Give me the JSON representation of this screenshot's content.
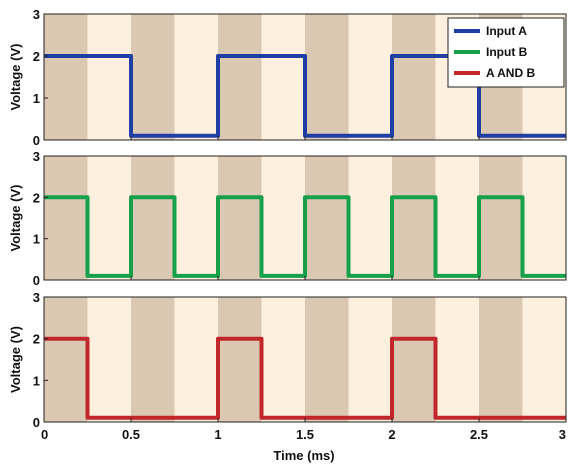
{
  "chart_data": {
    "type": "line",
    "xlabel": "Time (ms)",
    "xlim": [
      0,
      3
    ],
    "x_ticks": [
      "0",
      "0.5",
      "1",
      "1.5",
      "2",
      "2.5",
      "3"
    ],
    "shading": {
      "band_width_ms": 0.25,
      "dark_color": "#dac8b2",
      "light_color": "#fdf0de",
      "first_band": "dark"
    },
    "legend_position": "top-right",
    "panels": [
      {
        "ylabel": "Voltage (V)",
        "ylim": [
          0,
          3
        ],
        "y_ticks": [
          "0",
          "1",
          "2",
          "3"
        ],
        "series": {
          "name": "Input A",
          "color": "#1f3fa5",
          "x": [
            0,
            0.5,
            0.5,
            1,
            1,
            1.5,
            1.5,
            2,
            2,
            2.5,
            2.5,
            3
          ],
          "y": [
            2,
            2,
            0.1,
            0.1,
            2,
            2,
            0.1,
            0.1,
            2,
            2,
            0.1,
            0.1
          ]
        }
      },
      {
        "ylabel": "Voltage (V)",
        "ylim": [
          0,
          3
        ],
        "y_ticks": [
          "0",
          "1",
          "2",
          "3"
        ],
        "series": {
          "name": "Input B",
          "color": "#17a04a",
          "x": [
            0,
            0.25,
            0.25,
            0.5,
            0.5,
            0.75,
            0.75,
            1,
            1,
            1.25,
            1.25,
            1.5,
            1.5,
            1.75,
            1.75,
            2,
            2,
            2.25,
            2.25,
            2.5,
            2.5,
            2.75,
            2.75,
            3
          ],
          "y": [
            2,
            2,
            0.1,
            0.1,
            2,
            2,
            0.1,
            0.1,
            2,
            2,
            0.1,
            0.1,
            2,
            2,
            0.1,
            0.1,
            2,
            2,
            0.1,
            0.1,
            2,
            2,
            0.1,
            0.1
          ]
        }
      },
      {
        "ylabel": "Voltage (V)",
        "ylim": [
          0,
          3
        ],
        "y_ticks": [
          "0",
          "1",
          "2",
          "3"
        ],
        "series": {
          "name": "A AND B",
          "color": "#c0262a",
          "x": [
            0,
            0.25,
            0.25,
            1,
            1,
            1.25,
            1.25,
            2,
            2,
            2.25,
            2.25,
            3
          ],
          "y": [
            2,
            2,
            0.1,
            0.1,
            2,
            2,
            0.1,
            0.1,
            2,
            2,
            0.1,
            0.1
          ]
        }
      }
    ]
  }
}
